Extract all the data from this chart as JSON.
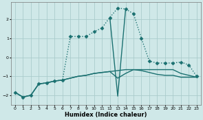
{
  "xlabel": "Humidex (Indice chaleur)",
  "ylabel": "",
  "bg_color": "#cfe8e8",
  "grid_color": "#aacccc",
  "line_color": "#1a7070",
  "xlim": [
    -0.5,
    23.5
  ],
  "ylim": [
    -2.5,
    2.9
  ],
  "yticks": [
    -2,
    -1,
    0,
    1,
    2
  ],
  "xticks": [
    0,
    1,
    2,
    3,
    4,
    5,
    6,
    7,
    8,
    9,
    10,
    11,
    12,
    13,
    14,
    15,
    16,
    17,
    18,
    19,
    20,
    21,
    22,
    23
  ],
  "series": [
    {
      "x": [
        0,
        1,
        2,
        3,
        4,
        5,
        6,
        7,
        8,
        9,
        10,
        11,
        12,
        13,
        14,
        15,
        16,
        17,
        18,
        19,
        20,
        21,
        22,
        23
      ],
      "y": [
        -1.85,
        -2.1,
        -2.0,
        -1.4,
        -1.35,
        -1.25,
        -1.2,
        -1.1,
        -1.0,
        -0.95,
        -0.85,
        -0.8,
        -0.75,
        -0.7,
        -0.65,
        -0.65,
        -0.7,
        -0.8,
        -0.9,
        -0.95,
        -0.95,
        -1.05,
        -1.05,
        -1.05
      ],
      "style": "solid",
      "marker": null,
      "lw": 1.0
    },
    {
      "x": [
        0,
        1,
        2,
        3,
        4,
        5,
        6,
        7,
        8,
        9,
        10,
        11,
        12,
        13,
        14,
        15,
        16,
        17,
        18,
        19,
        20,
        21,
        22,
        23
      ],
      "y": [
        -1.85,
        -2.1,
        -2.0,
        -1.4,
        -1.35,
        -1.25,
        -1.2,
        -1.1,
        -1.0,
        -0.95,
        -0.85,
        -0.8,
        -0.75,
        -1.1,
        -0.85,
        -0.65,
        -0.65,
        -0.65,
        -0.65,
        -0.65,
        -0.65,
        -0.85,
        -0.95,
        -1.05
      ],
      "style": "solid",
      "marker": null,
      "lw": 1.0
    },
    {
      "x": [
        0,
        1,
        2,
        3,
        4,
        5,
        6,
        7,
        8,
        9,
        10,
        11,
        12,
        13,
        14,
        15,
        16,
        17,
        18,
        19,
        20,
        21,
        22,
        23
      ],
      "y": [
        -1.85,
        -2.1,
        -2.0,
        -1.4,
        -1.35,
        -1.25,
        -1.2,
        1.1,
        1.1,
        1.1,
        1.35,
        1.55,
        2.1,
        2.6,
        2.55,
        2.3,
        1.0,
        -0.2,
        -0.3,
        -0.3,
        -0.3,
        -0.25,
        -0.4,
        -1.0
      ],
      "style": "dotted",
      "marker": "D",
      "markersize": 2.5,
      "lw": 1.0
    },
    {
      "x": [
        12,
        13,
        14
      ],
      "y": [
        2.1,
        -2.05,
        2.55
      ],
      "style": "solid",
      "marker": null,
      "lw": 1.0
    }
  ]
}
